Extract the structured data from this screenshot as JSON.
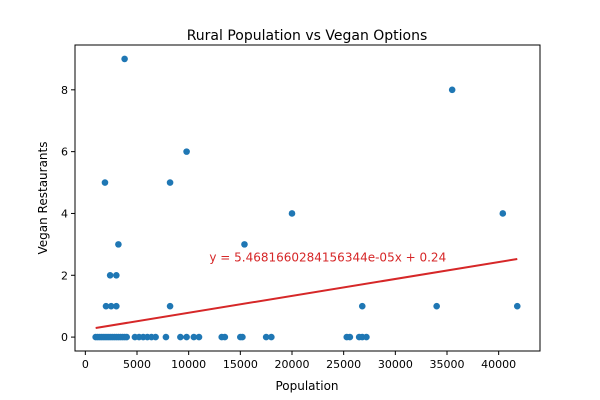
{
  "chart_data": {
    "type": "scatter",
    "title": "Rural Population vs Vegan Options",
    "xlabel": "Population",
    "ylabel": "Vegan Restaurants",
    "xlim": [
      -1000,
      44000
    ],
    "ylim": [
      -0.45,
      9.45
    ],
    "xticks": [
      0,
      5000,
      10000,
      15000,
      20000,
      25000,
      30000,
      35000,
      40000
    ],
    "yticks": [
      0,
      2,
      4,
      6,
      8
    ],
    "grid": false,
    "point_color": "#1f77b4",
    "points": [
      {
        "x": 1000,
        "y": 0
      },
      {
        "x": 1200,
        "y": 0
      },
      {
        "x": 1400,
        "y": 0
      },
      {
        "x": 1600,
        "y": 0
      },
      {
        "x": 1800,
        "y": 0
      },
      {
        "x": 2000,
        "y": 0
      },
      {
        "x": 2200,
        "y": 0
      },
      {
        "x": 2400,
        "y": 0
      },
      {
        "x": 2600,
        "y": 0
      },
      {
        "x": 2800,
        "y": 0
      },
      {
        "x": 3000,
        "y": 0
      },
      {
        "x": 3200,
        "y": 0
      },
      {
        "x": 3400,
        "y": 0
      },
      {
        "x": 3600,
        "y": 0
      },
      {
        "x": 3800,
        "y": 0
      },
      {
        "x": 4000,
        "y": 0
      },
      {
        "x": 4800,
        "y": 0
      },
      {
        "x": 5200,
        "y": 0
      },
      {
        "x": 5600,
        "y": 0
      },
      {
        "x": 6000,
        "y": 0
      },
      {
        "x": 6400,
        "y": 0
      },
      {
        "x": 6800,
        "y": 0
      },
      {
        "x": 7800,
        "y": 0
      },
      {
        "x": 9200,
        "y": 0
      },
      {
        "x": 9800,
        "y": 0
      },
      {
        "x": 10500,
        "y": 0
      },
      {
        "x": 11000,
        "y": 0
      },
      {
        "x": 13200,
        "y": 0
      },
      {
        "x": 13500,
        "y": 0
      },
      {
        "x": 15000,
        "y": 0
      },
      {
        "x": 15200,
        "y": 0
      },
      {
        "x": 17500,
        "y": 0
      },
      {
        "x": 18000,
        "y": 0
      },
      {
        "x": 25300,
        "y": 0
      },
      {
        "x": 25600,
        "y": 0
      },
      {
        "x": 26500,
        "y": 0
      },
      {
        "x": 26800,
        "y": 0
      },
      {
        "x": 27200,
        "y": 0
      },
      {
        "x": 2000,
        "y": 1
      },
      {
        "x": 2500,
        "y": 1
      },
      {
        "x": 3000,
        "y": 1
      },
      {
        "x": 8200,
        "y": 1
      },
      {
        "x": 26800,
        "y": 1
      },
      {
        "x": 34000,
        "y": 1
      },
      {
        "x": 41800,
        "y": 1
      },
      {
        "x": 2400,
        "y": 2
      },
      {
        "x": 3000,
        "y": 2
      },
      {
        "x": 3200,
        "y": 3
      },
      {
        "x": 15400,
        "y": 3
      },
      {
        "x": 20000,
        "y": 4
      },
      {
        "x": 40400,
        "y": 4
      },
      {
        "x": 1900,
        "y": 5
      },
      {
        "x": 8200,
        "y": 5
      },
      {
        "x": 9800,
        "y": 6
      },
      {
        "x": 35500,
        "y": 8
      },
      {
        "x": 3800,
        "y": 9
      }
    ],
    "trendline": {
      "color": "#d62728",
      "slope": 5.4681660284156344e-05,
      "intercept": 0.24,
      "x_start": 1000,
      "x_end": 41800,
      "label": "y = 5.4681660284156344e-05x + 0.24",
      "label_x": 12000,
      "label_y": 2.45
    }
  }
}
